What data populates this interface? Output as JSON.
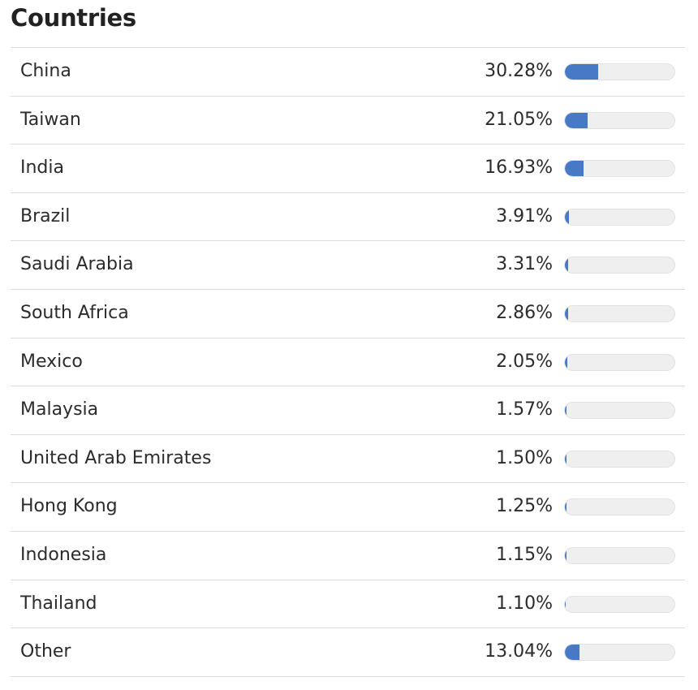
{
  "title": "Countries",
  "accent_color": "#4879c6",
  "rows": [
    {
      "country": "China",
      "percent_label": "30.28%",
      "value": 30.28
    },
    {
      "country": "Taiwan",
      "percent_label": "21.05%",
      "value": 21.05
    },
    {
      "country": "India",
      "percent_label": "16.93%",
      "value": 16.93
    },
    {
      "country": "Brazil",
      "percent_label": "3.91%",
      "value": 3.91
    },
    {
      "country": "Saudi Arabia",
      "percent_label": "3.31%",
      "value": 3.31
    },
    {
      "country": "South Africa",
      "percent_label": "2.86%",
      "value": 2.86
    },
    {
      "country": "Mexico",
      "percent_label": "2.05%",
      "value": 2.05
    },
    {
      "country": "Malaysia",
      "percent_label": "1.57%",
      "value": 1.57
    },
    {
      "country": "United Arab Emirates",
      "percent_label": "1.50%",
      "value": 1.5
    },
    {
      "country": "Hong Kong",
      "percent_label": "1.25%",
      "value": 1.25
    },
    {
      "country": "Indonesia",
      "percent_label": "1.15%",
      "value": 1.15
    },
    {
      "country": "Thailand",
      "percent_label": "1.10%",
      "value": 1.1
    },
    {
      "country": "Other",
      "percent_label": "13.04%",
      "value": 13.04
    }
  ]
}
